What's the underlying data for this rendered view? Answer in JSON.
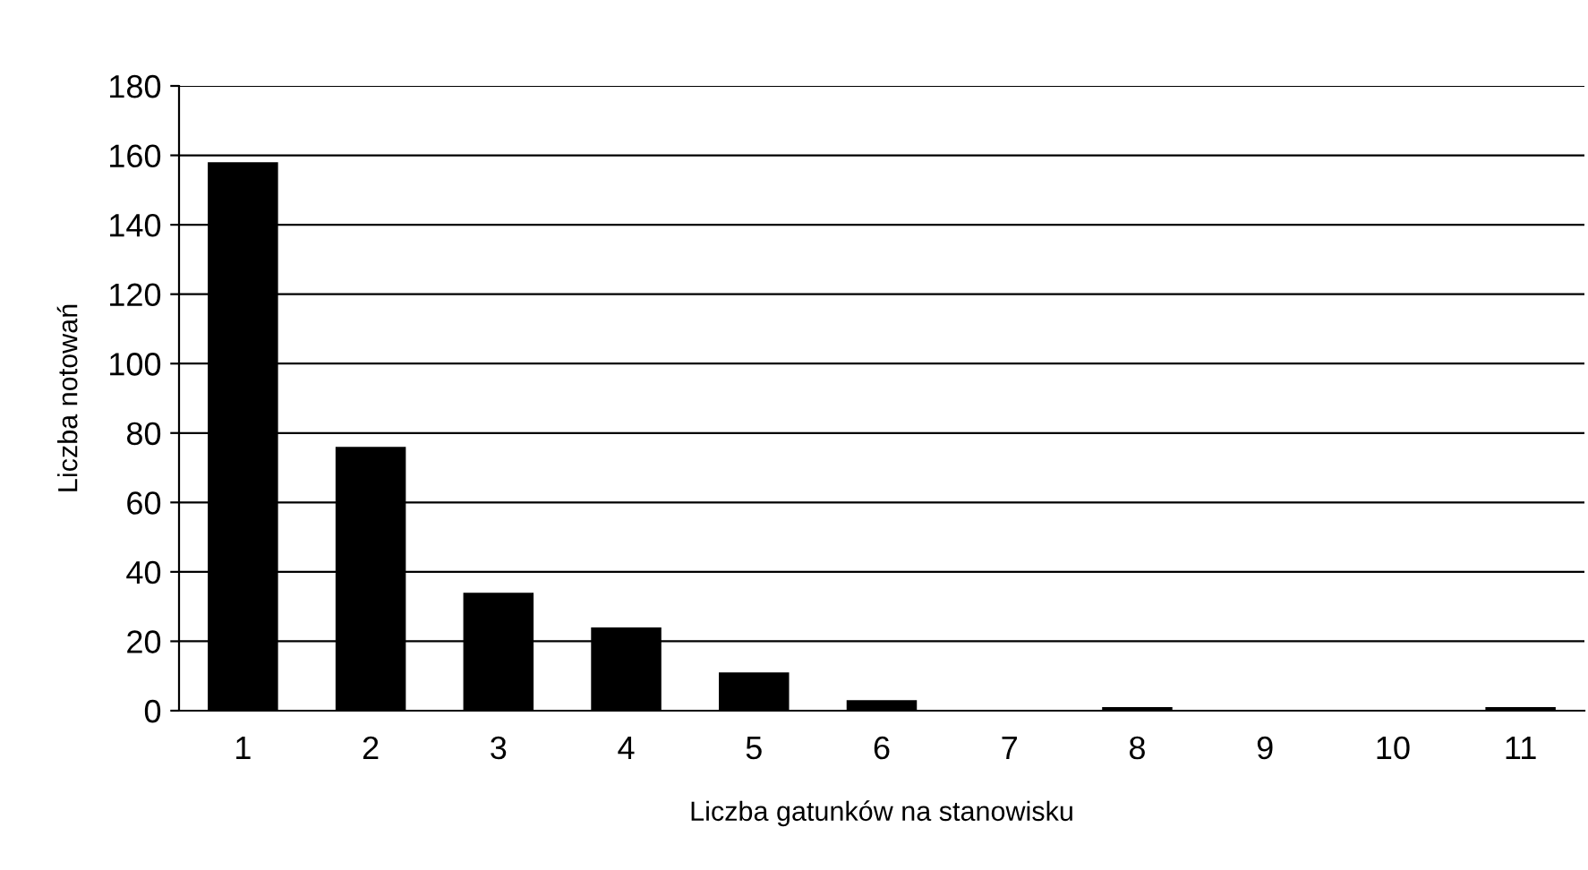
{
  "chart_data": {
    "type": "bar",
    "categories": [
      "1",
      "2",
      "3",
      "4",
      "5",
      "6",
      "7",
      "8",
      "9",
      "10",
      "11"
    ],
    "values": [
      158,
      76,
      34,
      24,
      11,
      3,
      0,
      1,
      0,
      0,
      1
    ],
    "color": "#000000",
    "xlabel": "Liczba gatunków na stanowisku",
    "ylabel": "Liczba notowań",
    "ylim": [
      0,
      180
    ],
    "yticks": [
      0,
      20,
      40,
      60,
      80,
      100,
      120,
      140,
      160,
      180
    ],
    "grid": "y",
    "legend": false
  }
}
